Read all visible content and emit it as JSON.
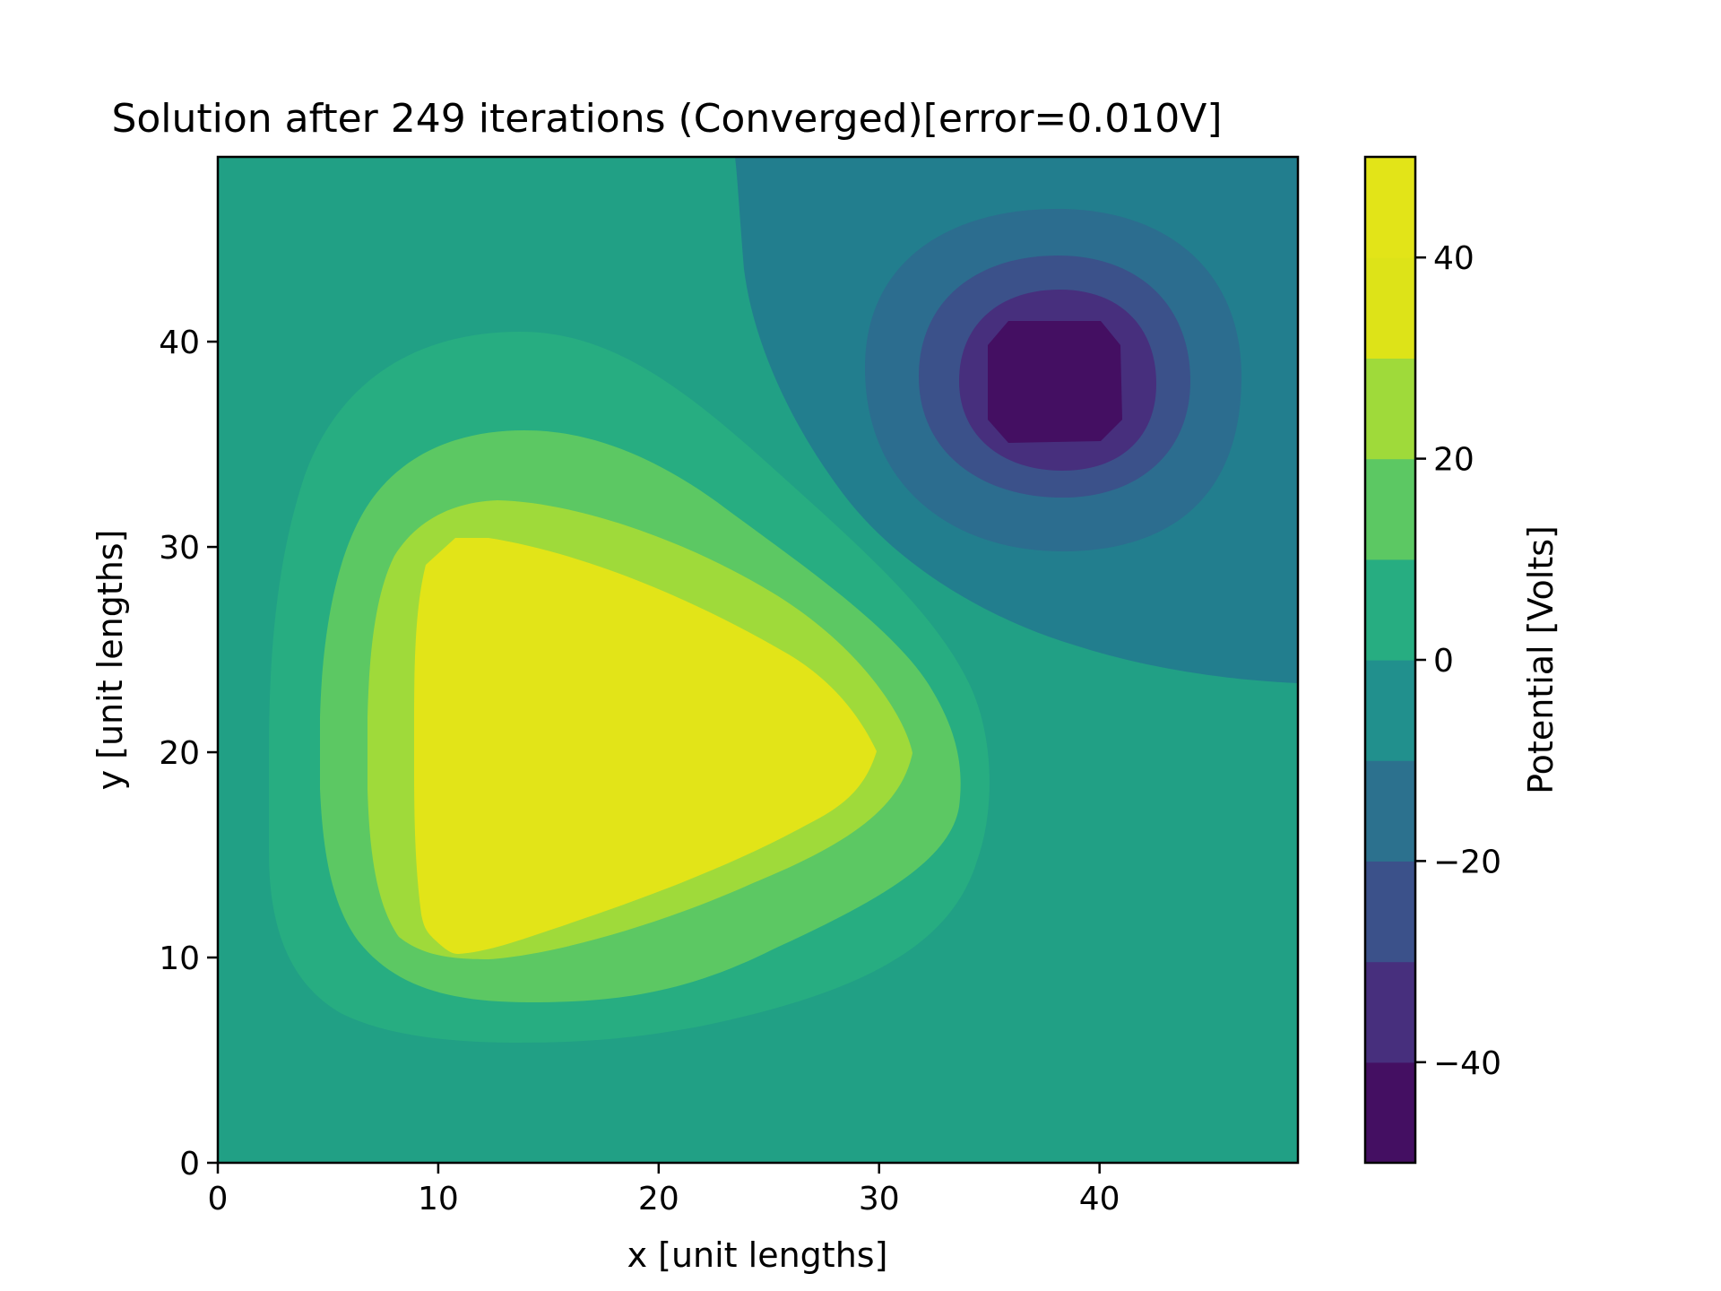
{
  "chart_data": {
    "type": "contour",
    "title": "Solution after 249 iterations (Converged)[error=0.010V]",
    "xlabel": "x [unit lengths]",
    "ylabel": "y [unit lengths]",
    "colorbar_label": "Potential [Volts]",
    "xlim": [
      0,
      49
    ],
    "ylim": [
      0,
      49
    ],
    "x_ticks": [
      0,
      10,
      20,
      30,
      40
    ],
    "y_ticks": [
      0,
      10,
      20,
      30,
      40
    ],
    "colorbar_range": [
      -50,
      50
    ],
    "colorbar_ticks": [
      -40,
      -20,
      0,
      20,
      40
    ],
    "levels": [
      -50,
      -40,
      -30,
      -20,
      -10,
      0,
      10,
      20,
      30,
      40,
      50
    ],
    "colormap": [
      "#440f62",
      "#472f7d",
      "#3b518a",
      "#2c718e",
      "#21908d",
      "#27ad81",
      "#5cc863",
      "#9fda3a",
      "#dde318",
      "#e2e418"
    ],
    "grid": false,
    "features": [
      {
        "name": "positive region",
        "center": [
          18,
          20
        ],
        "peak_value": 50
      },
      {
        "name": "negative region",
        "center": [
          38,
          38
        ],
        "peak_value": -50
      }
    ]
  }
}
